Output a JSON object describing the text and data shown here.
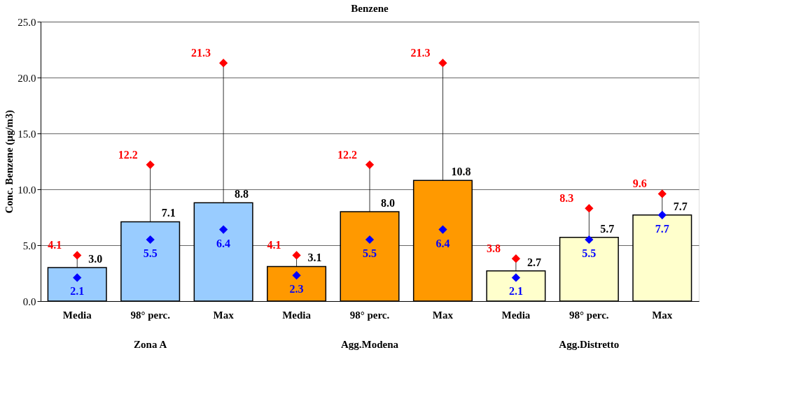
{
  "chart_data": {
    "type": "bar",
    "title": "Benzene",
    "ylabel": "Conc. Benzene (µg/m3)",
    "categories": [
      "Media",
      "98° perc.",
      "Max",
      "Media",
      "98° perc.",
      "Max",
      "Media",
      "98° perc.",
      "Max"
    ],
    "annotations": [
      "Zona A",
      "Agg.Modena",
      "Agg.Distretto"
    ],
    "series": [
      {
        "value_labels": [
          "3.0",
          "7.1",
          "8.8",
          "3.1",
          "8.0",
          "10.8",
          "2.7",
          "5.7",
          "7.7"
        ],
        "colors": [
          "#99ccff",
          "#99ccff",
          "#99ccff",
          "#ff9900",
          "#ff9900",
          "#ff9900",
          "#ffffcc",
          "#ffffcc",
          "#ffffcc"
        ],
        "values": [
          3.0,
          7.1,
          8.8,
          3.1,
          8.0,
          10.8,
          2.7,
          5.7,
          7.7
        ]
      },
      {
        "type": "scatter",
        "color": "#ff0000",
        "marker": "diamond",
        "values": [
          4.1,
          12.2,
          21.3,
          4.1,
          12.2,
          21.3,
          3.8,
          8.3,
          9.6
        ]
      },
      {
        "type": "scatter",
        "color": "#0000ff",
        "marker": "diamond",
        "values": [
          2.1,
          5.5,
          6.4,
          2.3,
          5.5,
          6.4,
          2.1,
          5.5,
          7.7
        ]
      }
    ],
    "ylim": [
      0,
      25
    ],
    "yticks": [
      {
        "value": 0,
        "label": "0.0"
      },
      {
        "value": 5,
        "label": "5.0"
      },
      {
        "value": 10,
        "label": "10.0"
      },
      {
        "value": 15,
        "label": "15.0"
      },
      {
        "value": 20,
        "label": "20.0"
      },
      {
        "value": 25,
        "label": "25.0"
      }
    ],
    "grid": "y",
    "data_labels": true
  }
}
